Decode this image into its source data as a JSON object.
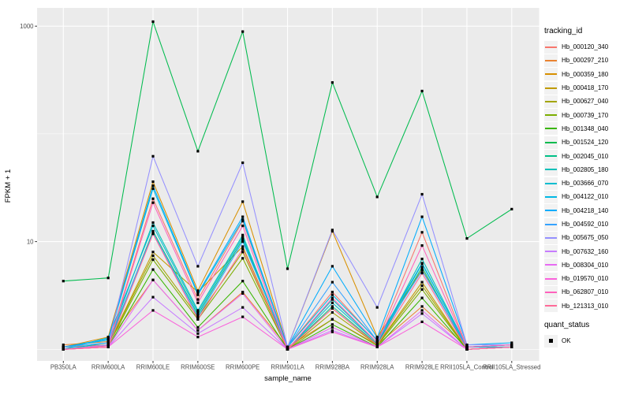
{
  "colors": {
    "panel_bg": "#EBEBEB",
    "grid": "#FFFFFF",
    "axis_text": "#4D4D4D",
    "axis_title": "#000000",
    "tick_mark": "#333333",
    "legend_key_bg": "#F2F2F2",
    "point": "#000000"
  },
  "legend": {
    "tracking_title": "tracking_id",
    "quant_title": "quant_status",
    "quant_items": [
      {
        "label": "OK"
      }
    ]
  },
  "chart_data": {
    "type": "line",
    "title": "",
    "xlabel": "sample_name",
    "ylabel": "FPKM + 1",
    "y_scale": "log10",
    "ylim": [
      0.9,
      1500
    ],
    "grid": true,
    "legend_position": "right",
    "point_shape": "filled-square",
    "quant_status": "OK",
    "y_ticks": [
      {
        "value": 1000,
        "label": "1000"
      },
      {
        "value": 10,
        "label": "10"
      }
    ],
    "y_gridlines_major": [
      10,
      1000
    ],
    "y_gridlines_minor": [
      1,
      100
    ],
    "categories": [
      "PB350LA",
      "RRIM600LA",
      "RRIM600LE",
      "RRIM600SE",
      "RRIM600PE",
      "RRIM901LA",
      "RRIM928BA",
      "RRIM928LA",
      "RRIM928LE",
      "RRII105LA_Control",
      "RRII105LA_Stressed"
    ],
    "series": [
      {
        "name": "Hb_000120_340",
        "color": "#F8766D",
        "values": [
          1.05,
          1.1,
          25,
          2.9,
          15.5,
          1.05,
          3.4,
          1.2,
          12.2,
          1.05,
          1.1
        ]
      },
      {
        "name": "Hb_000297_210",
        "color": "#EA8331",
        "values": [
          1.1,
          1.18,
          4.4,
          1.5,
          3.4,
          1.05,
          1.9,
          1.1,
          2.5,
          1.05,
          1.1
        ]
      },
      {
        "name": "Hb_000359_180",
        "color": "#D89000",
        "values": [
          1.05,
          1.3,
          36,
          3.5,
          23.5,
          1.05,
          12.5,
          1.3,
          5.5,
          1.05,
          1.1
        ]
      },
      {
        "name": "Hb_000418_170",
        "color": "#C09B00",
        "values": [
          1.0,
          1.1,
          8.0,
          3.4,
          9.0,
          1.0,
          2.4,
          1.1,
          4.2,
          1.0,
          1.05
        ]
      },
      {
        "name": "Hb_000627_040",
        "color": "#A3A500",
        "values": [
          1.0,
          1.1,
          7.4,
          2.0,
          8.0,
          1.0,
          2.2,
          1.1,
          3.9,
          1.0,
          1.05
        ]
      },
      {
        "name": "Hb_000739_170",
        "color": "#7CAE00",
        "values": [
          1.0,
          1.08,
          6.8,
          1.9,
          7.0,
          1.0,
          1.9,
          1.08,
          3.6,
          1.0,
          1.05
        ]
      },
      {
        "name": "Hb_001348_040",
        "color": "#39B600",
        "values": [
          1.0,
          1.05,
          5.5,
          1.6,
          4.3,
          1.0,
          1.7,
          1.05,
          3.0,
          1.0,
          1.05
        ]
      },
      {
        "name": "Hb_001524_120",
        "color": "#00BB4E",
        "values": [
          4.3,
          4.6,
          1100,
          69,
          890,
          5.6,
          300,
          26,
          250,
          10.7,
          20
        ]
      },
      {
        "name": "Hb_002045_010",
        "color": "#00C087",
        "values": [
          1.0,
          1.1,
          12.5,
          2.1,
          10.5,
          1.0,
          2.5,
          1.12,
          5.8,
          1.0,
          1.05
        ]
      },
      {
        "name": "Hb_002805_180",
        "color": "#00C0B8",
        "values": [
          1.0,
          1.15,
          15,
          2.3,
          11.5,
          1.0,
          2.9,
          1.15,
          6.9,
          1.05,
          1.05
        ]
      },
      {
        "name": "Hb_003666_070",
        "color": "#00BDD0",
        "values": [
          1.0,
          1.28,
          14,
          2.2,
          11.0,
          1.0,
          2.7,
          1.15,
          6.2,
          1.05,
          1.05
        ]
      },
      {
        "name": "Hb_004122_010",
        "color": "#00B8E5",
        "values": [
          1.05,
          1.22,
          31,
          3.2,
          16,
          1.05,
          3.2,
          1.22,
          6.3,
          1.05,
          1.1
        ]
      },
      {
        "name": "Hb_004218_140",
        "color": "#00ACFC",
        "values": [
          1.05,
          1.25,
          33,
          3.3,
          17,
          1.05,
          5.9,
          1.28,
          17,
          1.1,
          1.15
        ]
      },
      {
        "name": "Hb_004592_010",
        "color": "#35A2FF",
        "values": [
          1.05,
          1.15,
          12,
          2.0,
          10,
          1.05,
          4.2,
          1.2,
          5.4,
          1.05,
          1.1
        ]
      },
      {
        "name": "Hb_005675_050",
        "color": "#9590FF",
        "values": [
          1.0,
          1.1,
          62,
          5.9,
          54,
          1.05,
          12.8,
          2.45,
          27.5,
          1.1,
          1.1
        ]
      },
      {
        "name": "Hb_007632_160",
        "color": "#C77CFF",
        "values": [
          1.0,
          1.05,
          3.05,
          1.4,
          2.45,
          1.0,
          1.5,
          1.05,
          2.15,
          1.0,
          1.05
        ]
      },
      {
        "name": "Hb_008304_010",
        "color": "#E76BF3",
        "values": [
          1.0,
          1.05,
          4.4,
          1.5,
          3.3,
          1.0,
          1.6,
          1.05,
          2.3,
          1.0,
          1.05
        ]
      },
      {
        "name": "Hb_019570_010",
        "color": "#FA62DB",
        "values": [
          1.0,
          1.05,
          2.3,
          1.3,
          2.0,
          1.0,
          1.45,
          1.05,
          1.8,
          1.0,
          1.05
        ]
      },
      {
        "name": "Hb_062807_010",
        "color": "#FF62BC",
        "values": [
          1.0,
          1.08,
          23,
          2.7,
          14,
          1.0,
          3.0,
          1.15,
          9.2,
          1.05,
          1.1
        ]
      },
      {
        "name": "Hb_121313_010",
        "color": "#FF6A98",
        "values": [
          1.0,
          1.05,
          11.8,
          1.9,
          8.5,
          1.0,
          2.4,
          1.1,
          5.1,
          1.0,
          1.05
        ]
      }
    ]
  }
}
